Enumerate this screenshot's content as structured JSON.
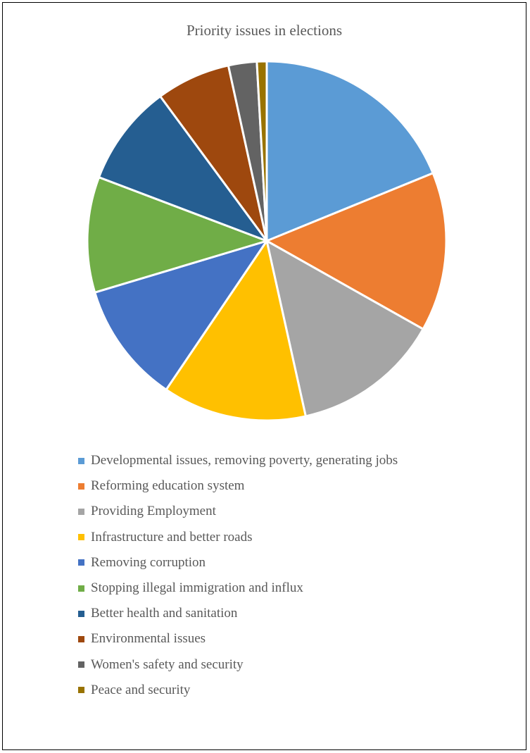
{
  "chart_data": {
    "type": "pie",
    "title": "Priority issues in elections",
    "legend_position": "bottom",
    "slices": [
      {
        "label": "Developmental issues, removing poverty, generating jobs",
        "value": 19.2,
        "color": "#5B9BD5"
      },
      {
        "label": "Reforming education system",
        "value": 14.6,
        "color": "#ED7D31"
      },
      {
        "label": "Providing Employment",
        "value": 13.6,
        "color": "#A5A5A5"
      },
      {
        "label": "Infrastructure and better roads",
        "value": 13.2,
        "color": "#FFC000"
      },
      {
        "label": "Removing corruption",
        "value": 11.1,
        "color": "#4472C4"
      },
      {
        "label": "Stopping illegal immigration and influx",
        "value": 10.6,
        "color": "#70AD47"
      },
      {
        "label": "Better health and sanitation",
        "value": 9.3,
        "color": "#255E91"
      },
      {
        "label": "Environmental issues",
        "value": 6.8,
        "color": "#9E480E"
      },
      {
        "label": "Women's safety and security",
        "value": 2.6,
        "color": "#636363"
      },
      {
        "label": "Peace and security",
        "value": 0.9,
        "color": "#997300"
      }
    ]
  }
}
